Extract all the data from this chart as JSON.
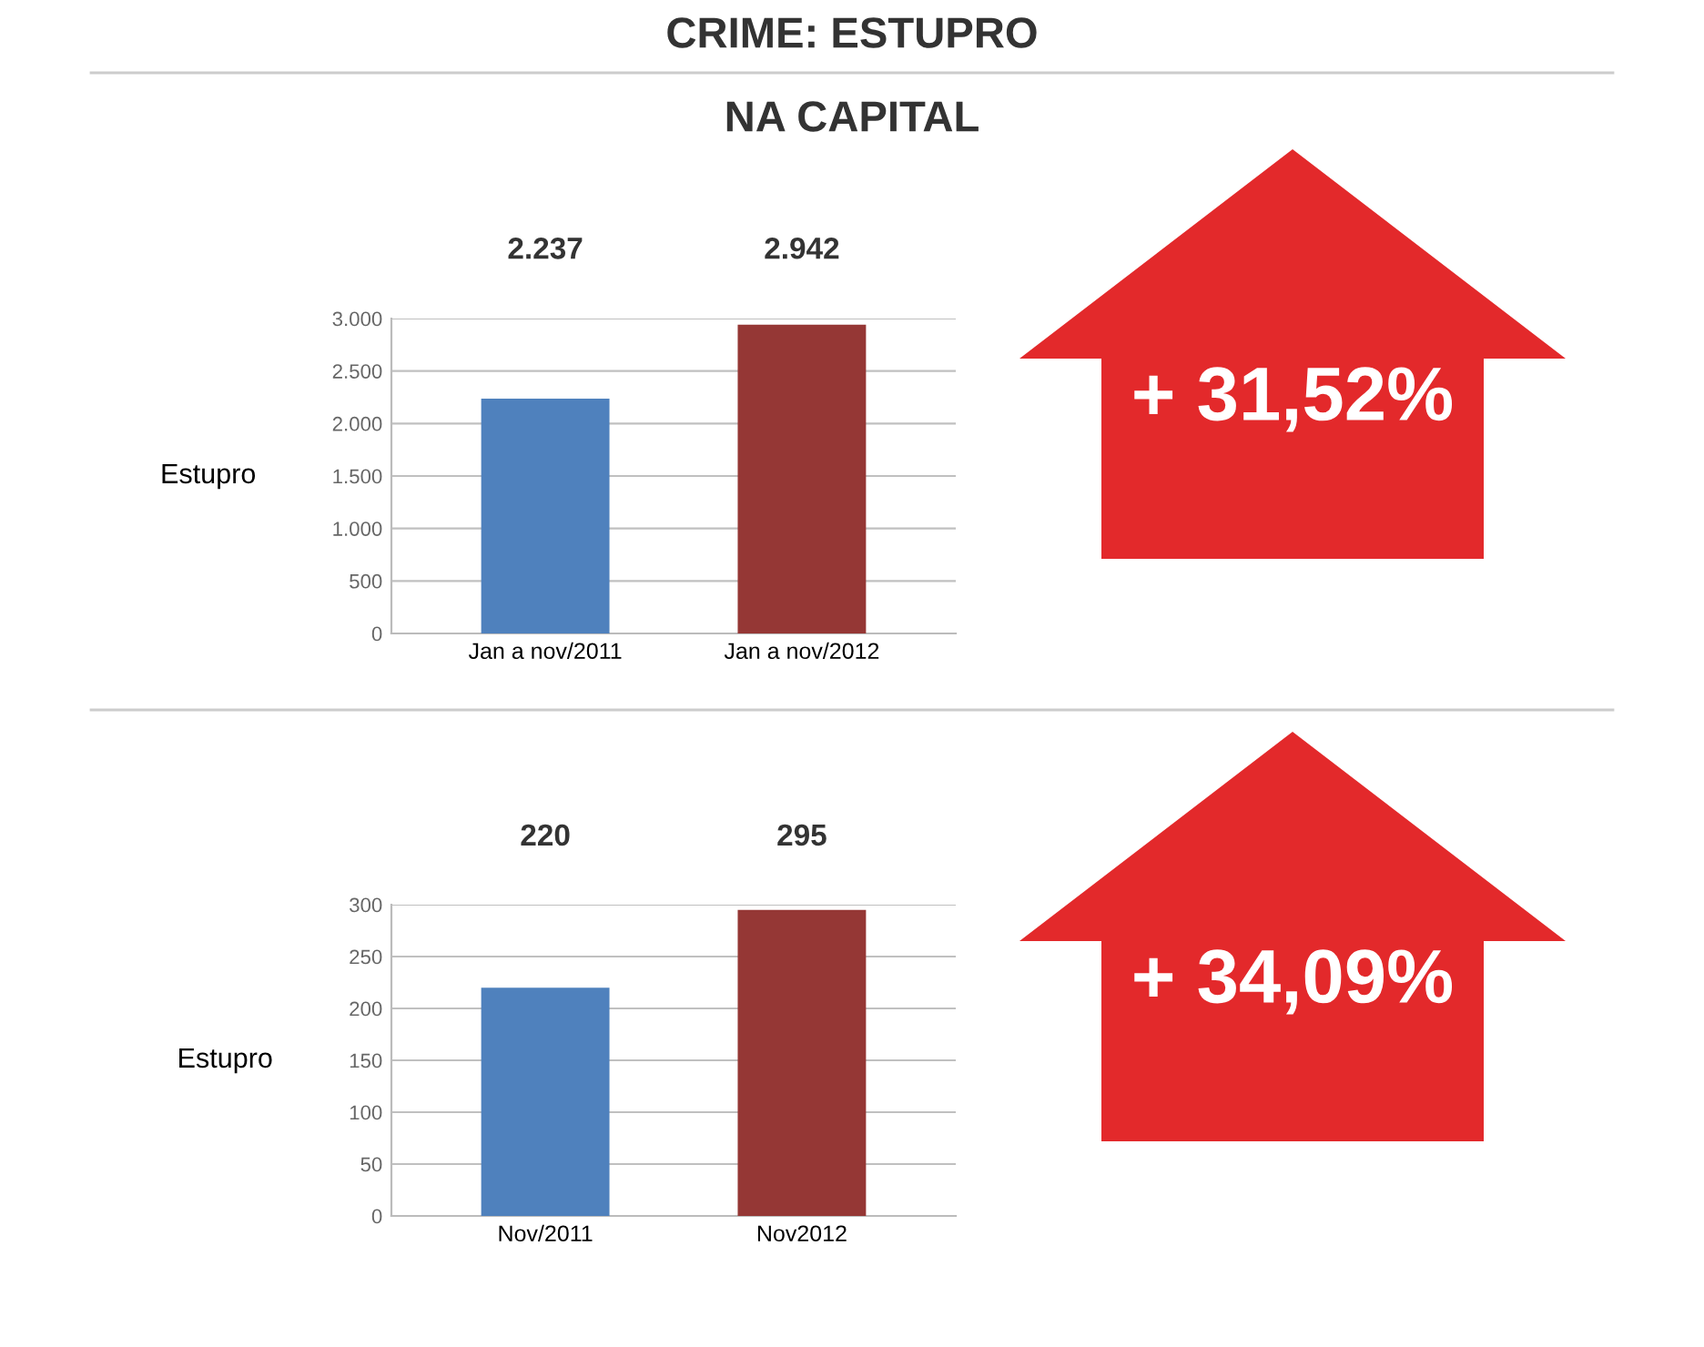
{
  "chart_data": [
    {
      "type": "bar",
      "title": "CRIME: ESTUPRO",
      "subtitle": "NA CAPITAL",
      "ylabel": "Estupro",
      "categories": [
        "Jan a nov/2011",
        "Jan a nov/2012"
      ],
      "values": [
        2237,
        2942
      ],
      "colors": [
        "#4f81bd",
        "#953735"
      ],
      "value_labels": [
        "2.237",
        "2.942"
      ],
      "ylim": [
        0,
        3000
      ],
      "yticks": [
        0,
        500,
        {
          "value": 1000,
          "label": "1.000"
        },
        {
          "value": 1500,
          "label": "1.500"
        },
        {
          "value": 2000,
          "label": "2.000"
        },
        {
          "value": 2500,
          "label": "2.500"
        },
        {
          "value": 3000,
          "label": "3.000"
        }
      ],
      "grid": "y",
      "legend": false,
      "annotations": [
        "+ 31,52%"
      ]
    },
    {
      "type": "bar",
      "ylabel": "Estupro",
      "categories": [
        "Nov/2011",
        "Nov2012"
      ],
      "values": [
        220,
        295
      ],
      "colors": [
        "#4f81bd",
        "#953735"
      ],
      "value_labels": [
        "220",
        "295"
      ],
      "ylim": [
        0,
        300
      ],
      "yticks": [
        0,
        50,
        100,
        150,
        200,
        250,
        300
      ],
      "grid": "y",
      "legend": false,
      "annotations": [
        "+ 34,09%"
      ]
    }
  ]
}
